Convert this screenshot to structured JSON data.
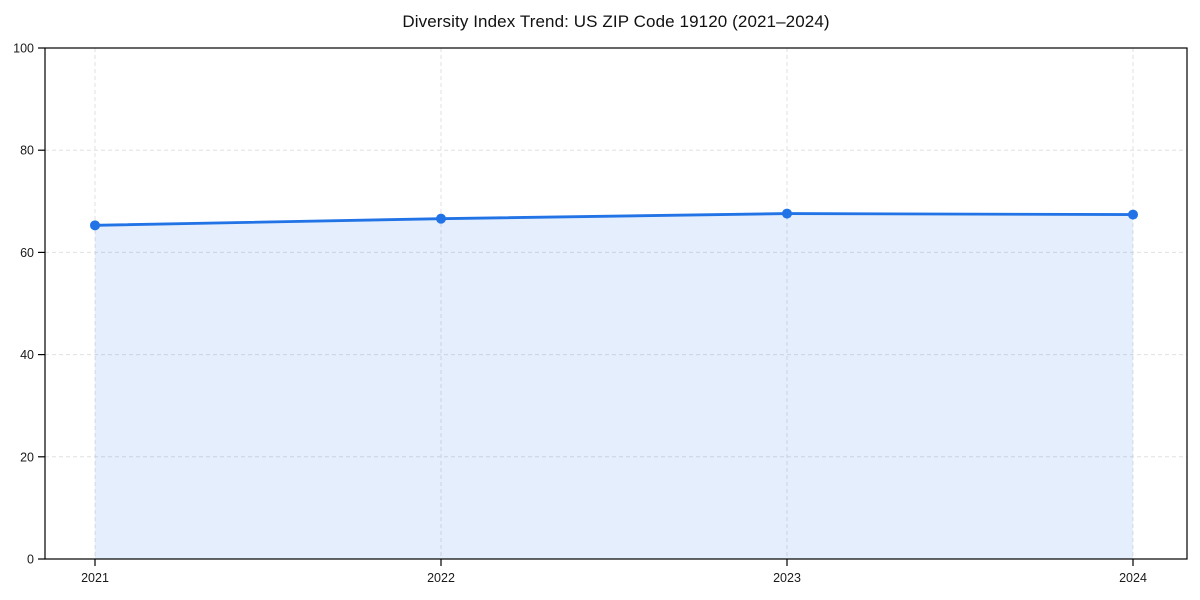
{
  "chart_data": {
    "type": "area",
    "title": "Diversity Index Trend: US ZIP Code 19120 (2021–2024)",
    "categories": [
      "2021",
      "2022",
      "2023",
      "2024"
    ],
    "x": [
      2021,
      2022,
      2023,
      2024
    ],
    "series": [
      {
        "name": "Diversity Index",
        "values": [
          65.3,
          66.6,
          67.6,
          67.4
        ]
      }
    ],
    "xlabel": "",
    "ylabel": "",
    "ylim": [
      0,
      100
    ],
    "yticks": [
      0,
      20,
      40,
      60,
      80,
      100
    ],
    "grid": true,
    "grid_style": "dashed",
    "legend_position": "none",
    "line_color": "#2273e6",
    "marker": "circle",
    "fill_color": "#2273e6",
    "fill_opacity": 0.12,
    "grid_color": "#e0e0e0",
    "spine_color": "#000000",
    "tick_label_color": "#1a1a1a",
    "background_color": "#ffffff"
  }
}
